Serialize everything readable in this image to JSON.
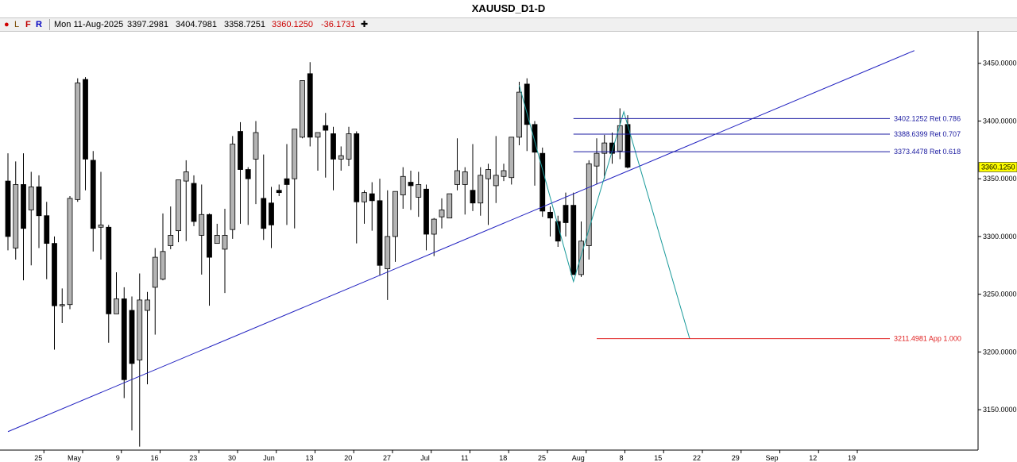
{
  "window": {
    "title": "XAUUSD_D1-D"
  },
  "toolbar": {
    "dot": "●",
    "btn_l": "L",
    "btn_f": "F",
    "btn_r": "R",
    "date": "Mon 11-Aug-2025",
    "open": "3397.2981",
    "high": "3404.7981",
    "low": "3358.7251",
    "close": "3360.1250",
    "change": "-36.1731",
    "crosshair_icon": "✚"
  },
  "colors": {
    "bull_fill": "#b4b4b4",
    "bear_fill": "#000000",
    "trendline": "#2020c0",
    "zigzag": "#1a9a9a",
    "fib": "#1a1aa0",
    "projection": "#e02020",
    "price_tag": "#ffff00"
  },
  "chart_data": {
    "type": "candlestick",
    "symbol": "XAUUSD",
    "timeframe": "D1",
    "ylim": [
      3115,
      3478
    ],
    "y_ticks": [
      "3450.0000",
      "3400.0000",
      "3350.0000",
      "3300.0000",
      "3250.0000",
      "3200.0000",
      "3150.0000"
    ],
    "y_tick_values": [
      3450,
      3400,
      3350,
      3300,
      3250,
      3200,
      3150
    ],
    "x_tick_labels": [
      {
        "label": "25",
        "bar": 3
      },
      {
        "label": "May",
        "bar": 8
      },
      {
        "label": "9",
        "bar": 13
      },
      {
        "label": "16",
        "bar": 18
      },
      {
        "label": "23",
        "bar": 23
      },
      {
        "label": "30",
        "bar": 28
      },
      {
        "label": "Jun",
        "bar": 33
      },
      {
        "label": "13",
        "bar": 38
      },
      {
        "label": "20",
        "bar": 43
      },
      {
        "label": "27",
        "bar": 48
      },
      {
        "label": "Jul",
        "bar": 53
      },
      {
        "label": "11",
        "bar": 58
      },
      {
        "label": "18",
        "bar": 63
      },
      {
        "label": "25",
        "bar": 68
      },
      {
        "label": "Aug",
        "bar": 73
      },
      {
        "label": "8",
        "bar": 78
      },
      {
        "label": "15",
        "bar": 83
      },
      {
        "label": "22",
        "bar": 88
      },
      {
        "label": "29",
        "bar": 93
      },
      {
        "label": "Sep",
        "bar": 98
      },
      {
        "label": "12",
        "bar": 103
      },
      {
        "label": "19",
        "bar": 108
      }
    ],
    "candles": [
      [
        3348,
        3372,
        3300,
        3288
      ],
      [
        3290,
        3365,
        3345,
        3280
      ],
      [
        3345,
        3372,
        3307,
        3262
      ],
      [
        3323,
        3356,
        3343,
        3275
      ],
      [
        3343,
        3353,
        3318,
        3290
      ],
      [
        3318,
        3330,
        3294,
        3263
      ],
      [
        3294,
        3300,
        3240,
        3202
      ],
      [
        3240,
        3255,
        3241,
        3225
      ],
      [
        3241,
        3335,
        3333,
        3237
      ],
      [
        3332,
        3437,
        3433,
        3330
      ],
      [
        3436,
        3438,
        3367,
        3340
      ],
      [
        3366,
        3374,
        3307,
        3287
      ],
      [
        3308,
        3356,
        3310,
        3280
      ],
      [
        3308,
        3310,
        3233,
        3208
      ],
      [
        3233,
        3269,
        3246,
        3233
      ],
      [
        3246,
        3256,
        3176,
        3160
      ],
      [
        3236,
        3248,
        3190,
        3132
      ],
      [
        3193,
        3268,
        3245,
        3118
      ],
      [
        3236,
        3252,
        3245,
        3172
      ],
      [
        3256,
        3290,
        3282,
        3215
      ],
      [
        3263,
        3320,
        3287,
        3262
      ],
      [
        3292,
        3326,
        3301,
        3289
      ],
      [
        3305,
        3335,
        3349,
        3295
      ],
      [
        3348,
        3366,
        3356,
        3296
      ],
      [
        3346,
        3353,
        3313,
        3309
      ],
      [
        3301,
        3345,
        3319,
        3267
      ],
      [
        3319,
        3320,
        3282,
        3240
      ],
      [
        3294,
        3311,
        3301,
        3295
      ],
      [
        3289,
        3324,
        3301,
        3251
      ],
      [
        3306,
        3387,
        3380,
        3298
      ],
      [
        3391,
        3399,
        3358,
        3311
      ],
      [
        3358,
        3360,
        3350,
        3310
      ],
      [
        3367,
        3400,
        3390,
        3328
      ],
      [
        3333,
        3371,
        3307,
        3297
      ],
      [
        3329,
        3343,
        3310,
        3290
      ],
      [
        3340,
        3345,
        3338,
        3335
      ],
      [
        3350,
        3380,
        3345,
        3310
      ],
      [
        3350,
        3387,
        3393,
        3307
      ],
      [
        3386,
        3402,
        3435,
        3385
      ],
      [
        3441,
        3451,
        3386,
        3378
      ],
      [
        3386,
        3389,
        3390,
        3357
      ],
      [
        3396,
        3407,
        3392,
        3351
      ],
      [
        3389,
        3395,
        3367,
        3340
      ],
      [
        3367,
        3378,
        3370,
        3357
      ],
      [
        3367,
        3395,
        3389,
        3361
      ],
      [
        3389,
        3391,
        3330,
        3294
      ],
      [
        3330,
        3340,
        3338,
        3311
      ],
      [
        3337,
        3347,
        3331,
        3305
      ],
      [
        3331,
        3350,
        3275,
        3266
      ],
      [
        3272,
        3340,
        3300,
        3245
      ],
      [
        3300,
        3338,
        3339,
        3278
      ],
      [
        3336,
        3360,
        3352,
        3324
      ],
      [
        3347,
        3357,
        3344,
        3323
      ],
      [
        3334,
        3356,
        3345,
        3317
      ],
      [
        3341,
        3345,
        3302,
        3288
      ],
      [
        3302,
        3316,
        3315,
        3283
      ],
      [
        3317,
        3333,
        3323,
        3307
      ],
      [
        3316,
        3331,
        3337,
        3323
      ],
      [
        3345,
        3385,
        3357,
        3340
      ],
      [
        3345,
        3360,
        3356,
        3319
      ],
      [
        3340,
        3380,
        3329,
        3322
      ],
      [
        3329,
        3360,
        3353,
        3318
      ],
      [
        3350,
        3363,
        3358,
        3310
      ],
      [
        3344,
        3387,
        3353,
        3329
      ],
      [
        3352,
        3363,
        3357,
        3348
      ],
      [
        3351,
        3359,
        3386,
        3345
      ],
      [
        3386,
        3434,
        3425,
        3379
      ],
      [
        3432,
        3437,
        3397,
        3374
      ],
      [
        3397,
        3400,
        3373,
        3344
      ],
      [
        3372,
        3377,
        3322,
        3317
      ],
      [
        3321,
        3326,
        3316,
        3300
      ],
      [
        3313,
        3318,
        3296,
        3291
      ],
      [
        3327,
        3338,
        3312,
        3300
      ],
      [
        3327,
        3338,
        3267,
        3270
      ],
      [
        3267,
        3313,
        3296,
        3265
      ],
      [
        3292,
        3366,
        3363,
        3280
      ],
      [
        3361,
        3385,
        3372,
        3345
      ],
      [
        3372,
        3388,
        3381,
        3350
      ],
      [
        3381,
        3390,
        3372,
        3363
      ],
      [
        3374,
        3411,
        3396,
        3367
      ],
      [
        3397,
        3405,
        3360,
        3359
      ]
    ],
    "trendline": {
      "label": "",
      "points": [
        [
          0,
          3131
        ],
        [
          117,
          3461
        ]
      ]
    },
    "zigzag": {
      "points": [
        [
          66,
          3431
        ],
        [
          73,
          3261
        ],
        [
          79.5,
          3408
        ],
        [
          88,
          3211.5
        ]
      ]
    },
    "fib_levels": [
      {
        "value": 3402.1252,
        "label": "3402.1252 Ret 0.786",
        "start_bar": 73
      },
      {
        "value": 3388.6399,
        "label": "3388.6399 Ret 0.707",
        "start_bar": 73
      },
      {
        "value": 3373.4478,
        "label": "3373.4478 Ret 0.618",
        "start_bar": 73
      }
    ],
    "projection_level": {
      "value": 3211.4981,
      "label": "3211.4981 App 1.000",
      "start_bar": 76
    },
    "current_price": {
      "value": 3360.125,
      "label": "3360.1250"
    }
  }
}
